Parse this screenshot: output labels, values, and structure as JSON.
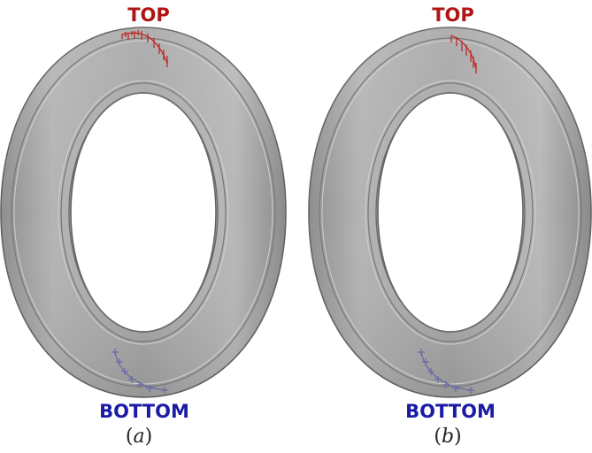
{
  "panels": [
    {
      "id": "a",
      "top_label": "TOP",
      "bottom_label": "BOTTOM",
      "caption_open": "(",
      "caption_letter": "a",
      "caption_close": ")"
    },
    {
      "id": "b",
      "top_label": "TOP",
      "bottom_label": "BOTTOM",
      "caption_open": "(",
      "caption_letter": "b",
      "caption_close": ")"
    }
  ],
  "colors": {
    "top_label": "#b01414",
    "bottom_label": "#1b1ba6",
    "top_markers": "#c02020",
    "bottom_markers": "#6a6aa8",
    "ring_fill": "#a9a9a9",
    "ring_edge": "#6e6e6e"
  }
}
